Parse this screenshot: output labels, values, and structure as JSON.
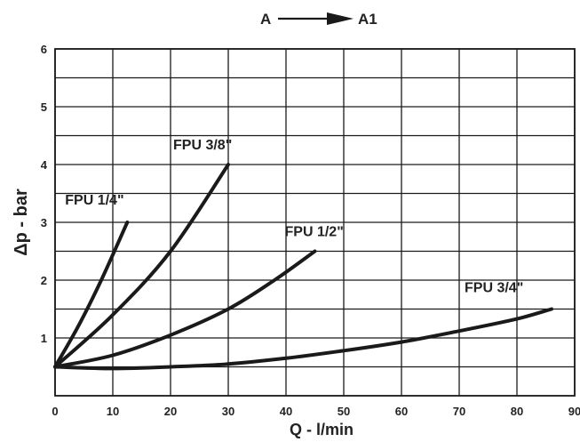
{
  "chart_data": {
    "type": "line",
    "title": {
      "from": "A",
      "to": "A1"
    },
    "xlabel": "Q - l/min",
    "ylabel": "Δp - bar",
    "xlim": [
      0,
      90
    ],
    "ylim": [
      0,
      6
    ],
    "x_ticks": [
      "0",
      "10",
      "20",
      "30",
      "40",
      "50",
      "60",
      "70",
      "80",
      "90"
    ],
    "y_ticks": [
      "1",
      "2",
      "3",
      "4",
      "5",
      "6"
    ],
    "grid": true,
    "series": [
      {
        "name": "FPU 1/4\"",
        "x": [
          0,
          4,
          8,
          12.5
        ],
        "y": [
          0.5,
          1.2,
          2.0,
          3.0
        ]
      },
      {
        "name": "FPU 3/8\"",
        "x": [
          0,
          10,
          20,
          30
        ],
        "y": [
          0.5,
          1.4,
          2.5,
          4.0
        ]
      },
      {
        "name": "FPU 1/2\"",
        "x": [
          0,
          10,
          20,
          30,
          38,
          45
        ],
        "y": [
          0.5,
          0.7,
          1.05,
          1.5,
          2.0,
          2.5
        ]
      },
      {
        "name": "FPU 3/4\"",
        "x": [
          0,
          10,
          20,
          30,
          40,
          50,
          60,
          70,
          80,
          86
        ],
        "y": [
          0.5,
          0.47,
          0.5,
          0.55,
          0.65,
          0.78,
          0.93,
          1.12,
          1.33,
          1.5
        ]
      }
    ]
  }
}
